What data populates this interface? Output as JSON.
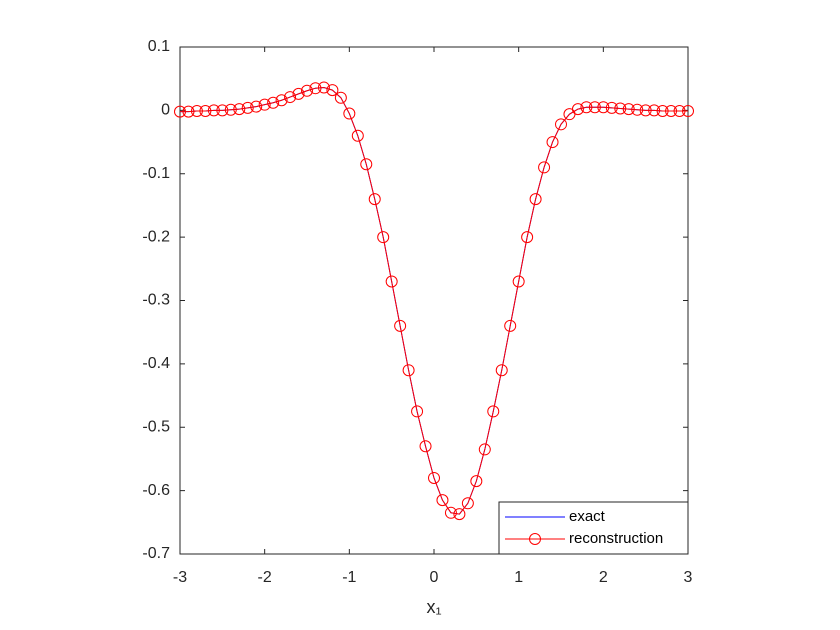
{
  "chart_data": {
    "type": "line",
    "xlabel": "x₁",
    "x": [
      -3.0,
      -2.9,
      -2.8,
      -2.7,
      -2.6,
      -2.5,
      -2.4,
      -2.3,
      -2.2,
      -2.1,
      -2.0,
      -1.9,
      -1.8,
      -1.7,
      -1.6,
      -1.5,
      -1.4,
      -1.3,
      -1.2,
      -1.1,
      -1.0,
      -0.9,
      -0.8,
      -0.7,
      -0.6,
      -0.5,
      -0.4,
      -0.3,
      -0.2,
      -0.1,
      0.0,
      0.1,
      0.2,
      0.3,
      0.4,
      0.5,
      0.6,
      0.7,
      0.8,
      0.9,
      1.0,
      1.1,
      1.2,
      1.3,
      1.4,
      1.5,
      1.6,
      1.7,
      1.8,
      1.9,
      2.0,
      2.1,
      2.2,
      2.3,
      2.4,
      2.5,
      2.6,
      2.7,
      2.8,
      2.9,
      3.0
    ],
    "series": [
      {
        "name": "exact",
        "color": "#0000ff",
        "marker": "none",
        "values": [
          -0.002,
          -0.002,
          -0.001,
          -0.001,
          0,
          0,
          0.001,
          0.002,
          0.004,
          0.006,
          0.009,
          0.012,
          0.016,
          0.021,
          0.026,
          0.031,
          0.035,
          0.036,
          0.032,
          0.02,
          -0.005,
          -0.04,
          -0.085,
          -0.14,
          -0.2,
          -0.27,
          -0.34,
          -0.41,
          -0.475,
          -0.53,
          -0.58,
          -0.615,
          -0.635,
          -0.637,
          -0.62,
          -0.585,
          -0.535,
          -0.475,
          -0.41,
          -0.34,
          -0.27,
          -0.2,
          -0.14,
          -0.09,
          -0.05,
          -0.022,
          -0.006,
          0.002,
          0.005,
          0.005,
          0.005,
          0.004,
          0.003,
          0.002,
          0.001,
          0,
          0,
          -0.001,
          -0.001,
          -0.001,
          -0.001
        ]
      },
      {
        "name": "reconstruction",
        "color": "#ff0000",
        "marker": "circle",
        "values": [
          -0.002,
          -0.002,
          -0.001,
          -0.001,
          0,
          0,
          0.001,
          0.002,
          0.004,
          0.006,
          0.009,
          0.012,
          0.016,
          0.021,
          0.026,
          0.031,
          0.035,
          0.036,
          0.032,
          0.02,
          -0.005,
          -0.04,
          -0.085,
          -0.14,
          -0.2,
          -0.27,
          -0.34,
          -0.41,
          -0.475,
          -0.53,
          -0.58,
          -0.615,
          -0.635,
          -0.637,
          -0.62,
          -0.585,
          -0.535,
          -0.475,
          -0.41,
          -0.34,
          -0.27,
          -0.2,
          -0.14,
          -0.09,
          -0.05,
          -0.022,
          -0.006,
          0.002,
          0.005,
          0.005,
          0.005,
          0.004,
          0.003,
          0.002,
          0.001,
          0,
          0,
          -0.001,
          -0.001,
          -0.001,
          -0.001
        ]
      }
    ],
    "xlim": [
      -3,
      3
    ],
    "xticks": [
      -3,
      -2,
      -1,
      0,
      1,
      2,
      3
    ],
    "ylim": [
      -0.7,
      0.1
    ],
    "yticks": [
      -0.7,
      -0.6,
      -0.5,
      -0.4,
      -0.3,
      -0.2,
      -0.1,
      0,
      0.1
    ],
    "grid": false,
    "legend": "south-east"
  }
}
